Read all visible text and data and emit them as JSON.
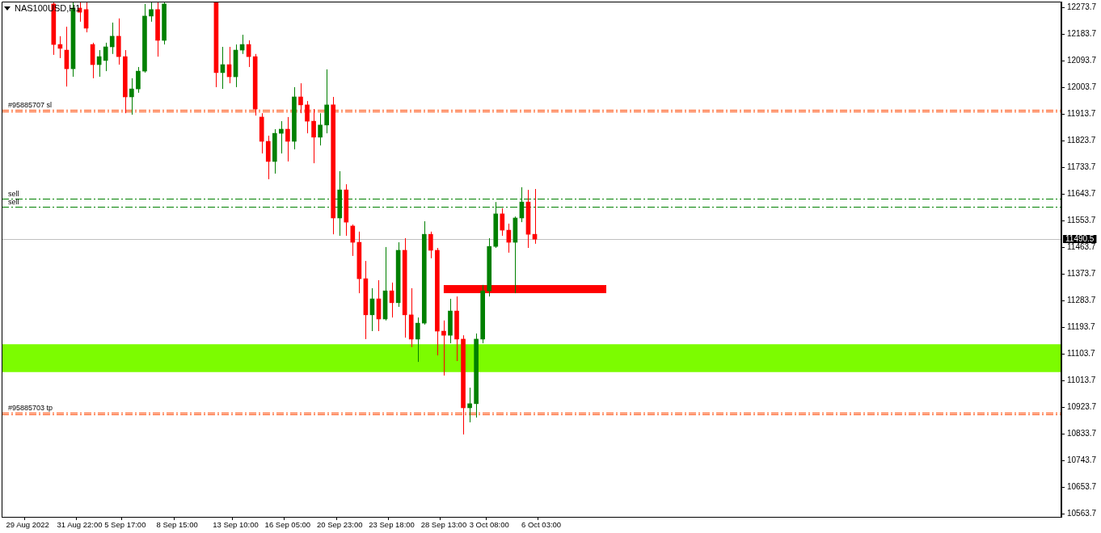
{
  "chart_data": {
    "type": "candlestick",
    "title": "NAS100USD,H1",
    "categories": [
      null,
      null,
      null,
      null,
      "29 Aug 2022",
      null,
      null,
      null,
      null,
      null,
      null,
      null,
      "31 Aug 22:00",
      null,
      null,
      null,
      null,
      null,
      null,
      "5 Sep 17:00",
      null,
      null,
      null,
      null,
      null,
      null,
      null,
      "8 Sep 15:00",
      null,
      null,
      null,
      null,
      null,
      null,
      null,
      null,
      "13 Sep 10:00",
      null,
      null,
      null,
      null,
      null,
      null,
      null,
      "16 Sep 05:00",
      null,
      null,
      null,
      null,
      null,
      null,
      null,
      "20 Sep 23:00",
      null,
      null,
      null,
      null,
      null,
      null,
      null,
      "23 Sep 18:00",
      null,
      null,
      null,
      null,
      null,
      null,
      null,
      "28 Sep 13:00",
      null,
      null,
      null,
      null,
      null,
      null,
      "3 Oct 08:00",
      null,
      null,
      null,
      null,
      null,
      null,
      null,
      "6 Oct 03:00",
      null,
      null,
      null,
      null,
      null,
      null,
      null,
      null,
      null,
      null,
      null,
      null,
      null,
      null,
      null,
      null,
      null,
      null,
      null,
      null,
      null,
      null,
      null,
      null,
      null,
      null,
      null,
      null,
      null,
      null,
      null,
      null,
      null,
      null,
      null,
      null,
      null,
      null,
      null,
      null,
      null,
      null,
      null,
      null,
      null,
      null,
      null,
      null,
      null,
      null,
      null,
      null,
      null,
      null,
      null,
      null,
      null,
      null,
      null,
      null,
      null,
      null,
      null,
      null,
      null,
      null,
      null,
      null,
      null,
      null,
      null,
      null,
      null,
      null,
      null,
      null,
      null,
      null,
      null,
      null
    ],
    "ohlc": [
      null,
      null,
      null,
      null,
      null,
      null,
      null,
      null,
      [
        12285,
        12290,
        12113,
        12148
      ],
      [
        12148,
        12176,
        12102,
        12135
      ],
      [
        12129,
        12208,
        12006,
        12066
      ],
      [
        12066,
        12290,
        12039,
        12271
      ],
      [
        12271,
        12290,
        12225,
        12257
      ],
      [
        12266,
        12290,
        12189,
        12203
      ],
      [
        12148,
        12154,
        12034,
        12080
      ],
      [
        12080,
        12129,
        12039,
        12107
      ],
      [
        12094,
        12154,
        12058,
        12140
      ],
      [
        12140,
        12222,
        12116,
        12176
      ],
      [
        12176,
        12236,
        12080,
        12107
      ],
      [
        12107,
        12129,
        11916,
        11971
      ],
      [
        11971,
        12034,
        11911,
        11998
      ],
      [
        11998,
        12072,
        11985,
        12058
      ],
      [
        12058,
        12285,
        12053,
        12244
      ],
      [
        12244,
        12290,
        12225,
        12266
      ],
      [
        12266,
        12290,
        12107,
        12162
      ],
      [
        12162,
        12290,
        12148,
        12285
      ],
      null,
      null,
      null,
      null,
      null,
      null,
      null,
      [
        12290,
        12290,
        12004,
        12053
      ],
      [
        12053,
        12140,
        11998,
        12080
      ],
      [
        12080,
        12140,
        12017,
        12039
      ],
      [
        12039,
        12148,
        12004,
        12129
      ],
      [
        12129,
        12181,
        12116,
        12148
      ],
      [
        12148,
        12162,
        12072,
        12107
      ],
      [
        12107,
        12116,
        11908,
        11930
      ],
      [
        11903,
        11916,
        11780,
        11821
      ],
      [
        11821,
        11840,
        11693,
        11753
      ],
      [
        11753,
        11862,
        11712,
        11848
      ],
      [
        11848,
        11889,
        11780,
        11862
      ],
      [
        11862,
        11903,
        11753,
        11821
      ],
      [
        11821,
        12004,
        11794,
        11971
      ],
      [
        11971,
        12017,
        11916,
        11944
      ],
      [
        11944,
        11957,
        11848,
        11889
      ],
      [
        11889,
        11930,
        11747,
        11835
      ],
      [
        11835,
        11916,
        11807,
        11876
      ],
      [
        11876,
        12064,
        11848,
        11944
      ],
      [
        11944,
        11971,
        11507,
        11562
      ],
      [
        11562,
        11720,
        11502,
        11657
      ],
      [
        11657,
        11676,
        11502,
        11548
      ],
      [
        11535,
        11540,
        11434,
        11480
      ],
      [
        11480,
        11516,
        11308,
        11357
      ],
      [
        11357,
        11417,
        11153,
        11235
      ],
      [
        11235,
        11325,
        11180,
        11289
      ],
      [
        11289,
        11352,
        11180,
        11221
      ],
      [
        11221,
        11464,
        11216,
        11316
      ],
      [
        11316,
        11344,
        11226,
        11276
      ],
      [
        11276,
        11480,
        11262,
        11453
      ],
      [
        11453,
        11494,
        11158,
        11235
      ],
      [
        11235,
        11325,
        11126,
        11153
      ],
      [
        11153,
        11226,
        11076,
        11207
      ],
      [
        11207,
        11551,
        11202,
        11507
      ],
      [
        11507,
        11516,
        11426,
        11453
      ],
      [
        11453,
        11461,
        11098,
        11180
      ],
      [
        11180,
        11216,
        11030,
        11166
      ],
      [
        11166,
        11289,
        11139,
        11248
      ],
      [
        11248,
        11297,
        11079,
        11153
      ],
      [
        11153,
        11166,
        10831,
        10921
      ],
      [
        10921,
        10989,
        10872,
        10935
      ],
      [
        10935,
        11172,
        10888,
        11153
      ],
      [
        11153,
        11336,
        11139,
        11316
      ],
      [
        11316,
        11494,
        11297,
        11466
      ],
      [
        11466,
        11616,
        11461,
        11576
      ],
      [
        11576,
        11595,
        11502,
        11521
      ],
      [
        11521,
        11543,
        11445,
        11480
      ],
      [
        11480,
        11567,
        11308,
        11562
      ],
      [
        11562,
        11666,
        11548,
        11616
      ],
      [
        11616,
        11657,
        11461,
        11507
      ],
      [
        11507,
        11660,
        11475,
        11490.5
      ],
      null,
      null,
      null,
      null,
      null,
      null,
      null,
      null,
      null,
      null,
      null,
      null,
      null,
      null,
      null,
      null,
      null,
      null,
      null,
      null,
      null,
      null,
      null,
      null,
      null,
      null,
      null,
      null,
      null,
      null,
      null,
      null,
      null,
      null,
      null,
      null,
      null,
      null,
      null,
      null,
      null,
      null,
      null,
      null,
      null,
      null,
      null,
      null,
      null,
      null,
      null,
      null,
      null,
      null,
      null,
      null,
      null,
      null,
      null,
      null,
      null,
      null,
      null,
      null,
      null,
      null,
      null,
      null,
      null,
      null,
      null,
      null,
      null,
      null,
      null,
      null,
      null,
      null,
      null,
      null,
      null
    ],
    "colors": [
      null,
      null,
      null,
      null,
      null,
      null,
      null,
      null,
      "#ff0000",
      "#ff0000",
      "#ff0000",
      "#008000",
      "#ff0000",
      "#ff0000",
      "#ff0000",
      "#008000",
      "#008000",
      "#008000",
      "#ff0000",
      "#ff0000",
      "#008000",
      "#008000",
      "#008000",
      "#008000",
      "#ff0000",
      "#008000",
      null,
      null,
      null,
      null,
      null,
      null,
      null,
      "#ff0000",
      "#008000",
      "#ff0000",
      "#008000",
      "#008000",
      "#ff0000",
      "#ff0000",
      "#ff0000",
      "#ff0000",
      "#008000",
      "#008000",
      "#ff0000",
      "#008000",
      "#ff0000",
      "#ff0000",
      "#ff0000",
      "#008000",
      "#008000",
      "#ff0000",
      "#008000",
      "#ff0000",
      "#ff0000",
      "#ff0000",
      "#ff0000",
      "#008000",
      "#ff0000",
      "#008000",
      "#ff0000",
      "#008000",
      "#ff0000",
      "#ff0000",
      "#008000",
      "#008000",
      "#ff0000",
      "#ff0000",
      "#ff0000",
      "#008000",
      "#ff0000",
      "#ff0000",
      "#008000",
      "#008000",
      "#008000",
      "#008000",
      "#008000",
      "#ff0000",
      "#ff0000",
      "#008000",
      "#008000",
      "#ff0000",
      "#ff0000",
      null,
      null,
      null,
      null,
      null,
      null,
      null,
      null,
      null,
      null,
      null,
      null,
      null,
      null,
      null,
      null,
      null,
      null,
      null,
      null,
      null,
      null,
      null,
      null,
      null,
      null,
      null,
      null,
      null,
      null,
      null,
      null,
      null,
      null,
      null,
      null,
      null,
      null,
      null,
      null,
      null,
      null,
      null,
      null,
      null,
      null,
      null,
      null,
      null,
      null,
      null,
      null,
      null,
      null,
      null,
      null,
      null,
      null,
      null,
      null,
      null,
      null,
      null,
      null,
      null,
      null,
      null,
      null,
      null,
      null,
      null,
      null,
      null,
      null,
      null,
      null,
      null,
      null,
      null,
      null,
      null
    ],
    "series": [
      {
        "type": "line",
        "color": "#ff0000",
        "values": [
          null,
          null,
          null,
          null,
          null,
          null,
          null,
          null,
          null,
          null,
          null,
          null,
          null,
          null,
          null,
          null,
          null,
          null,
          null,
          null,
          null,
          null,
          null,
          null,
          null,
          null,
          null,
          null,
          null,
          null,
          null,
          null,
          null,
          null,
          null,
          null,
          null,
          null,
          null,
          null,
          null,
          null,
          null,
          null,
          null,
          null,
          null,
          null,
          null,
          null,
          null,
          null,
          null,
          null,
          null,
          null,
          null,
          null,
          null,
          null,
          null,
          null,
          null,
          null,
          null,
          null,
          null,
          null,
          11322,
          11322,
          11322,
          11322,
          11322,
          11322,
          11322,
          11322,
          11322,
          11322,
          11322,
          11322,
          11322,
          11322,
          11322,
          11322,
          11322,
          11322,
          11322,
          11322,
          11322,
          11322,
          11322,
          11322,
          11322,
          11322,
          null,
          null,
          null,
          null,
          null,
          null,
          null,
          null,
          null,
          null,
          null,
          null,
          null,
          null,
          null,
          null,
          null,
          null,
          null,
          null,
          null,
          null,
          null,
          null,
          null,
          null,
          null,
          null,
          null,
          null,
          null,
          null,
          null,
          null,
          null,
          null,
          null,
          null,
          null,
          null,
          null,
          null,
          null,
          null,
          null,
          null,
          null,
          null,
          null,
          null,
          null,
          null,
          null,
          null,
          null,
          null,
          null,
          null,
          null,
          null,
          null,
          null,
          null,
          null,
          null,
          null,
          null,
          null,
          null,
          null
        ]
      }
    ],
    "ylim": [
      10552.8,
      12292.8
    ],
    "yticks": [
      10563.7,
      10653.7,
      10743.7,
      10833.7,
      10923.7,
      11013.7,
      11103.7,
      11193.7,
      11283.7,
      11373.7,
      11463.7,
      11553.7,
      11643.7,
      11733.7,
      11823.7,
      11913.7,
      12003.7,
      12093.7,
      12183.7,
      12273.7
    ],
    "ref_lines": [
      {
        "axis": "y",
        "value": 11927,
        "label": "#95885707 sl",
        "color": "#ff4500",
        "line_style": "dashed"
      },
      {
        "axis": "y",
        "value": 11923,
        "color": "#ff4500",
        "line_style": "dashed"
      },
      {
        "axis": "y",
        "value": 11626,
        "label": "sell",
        "color": "#008000",
        "line_style": "dashed"
      },
      {
        "axis": "y",
        "value": 11599,
        "label": "sell",
        "color": "#008000",
        "line_style": "dashed"
      },
      {
        "axis": "y",
        "value": 10905,
        "label": "#95885703 tp",
        "color": "#ff4500",
        "line_style": "dashed"
      },
      {
        "axis": "y",
        "value": 10900,
        "color": "#ff4500",
        "line_style": "dashed"
      },
      {
        "axis": "y",
        "value": 11490.5,
        "label": "11490.5",
        "color": "#c0c0c0",
        "line_style": "solid"
      }
    ],
    "bands": [
      {
        "axis": "y",
        "from": 11042,
        "to": 11136,
        "color": "#7cfc00"
      }
    ]
  }
}
